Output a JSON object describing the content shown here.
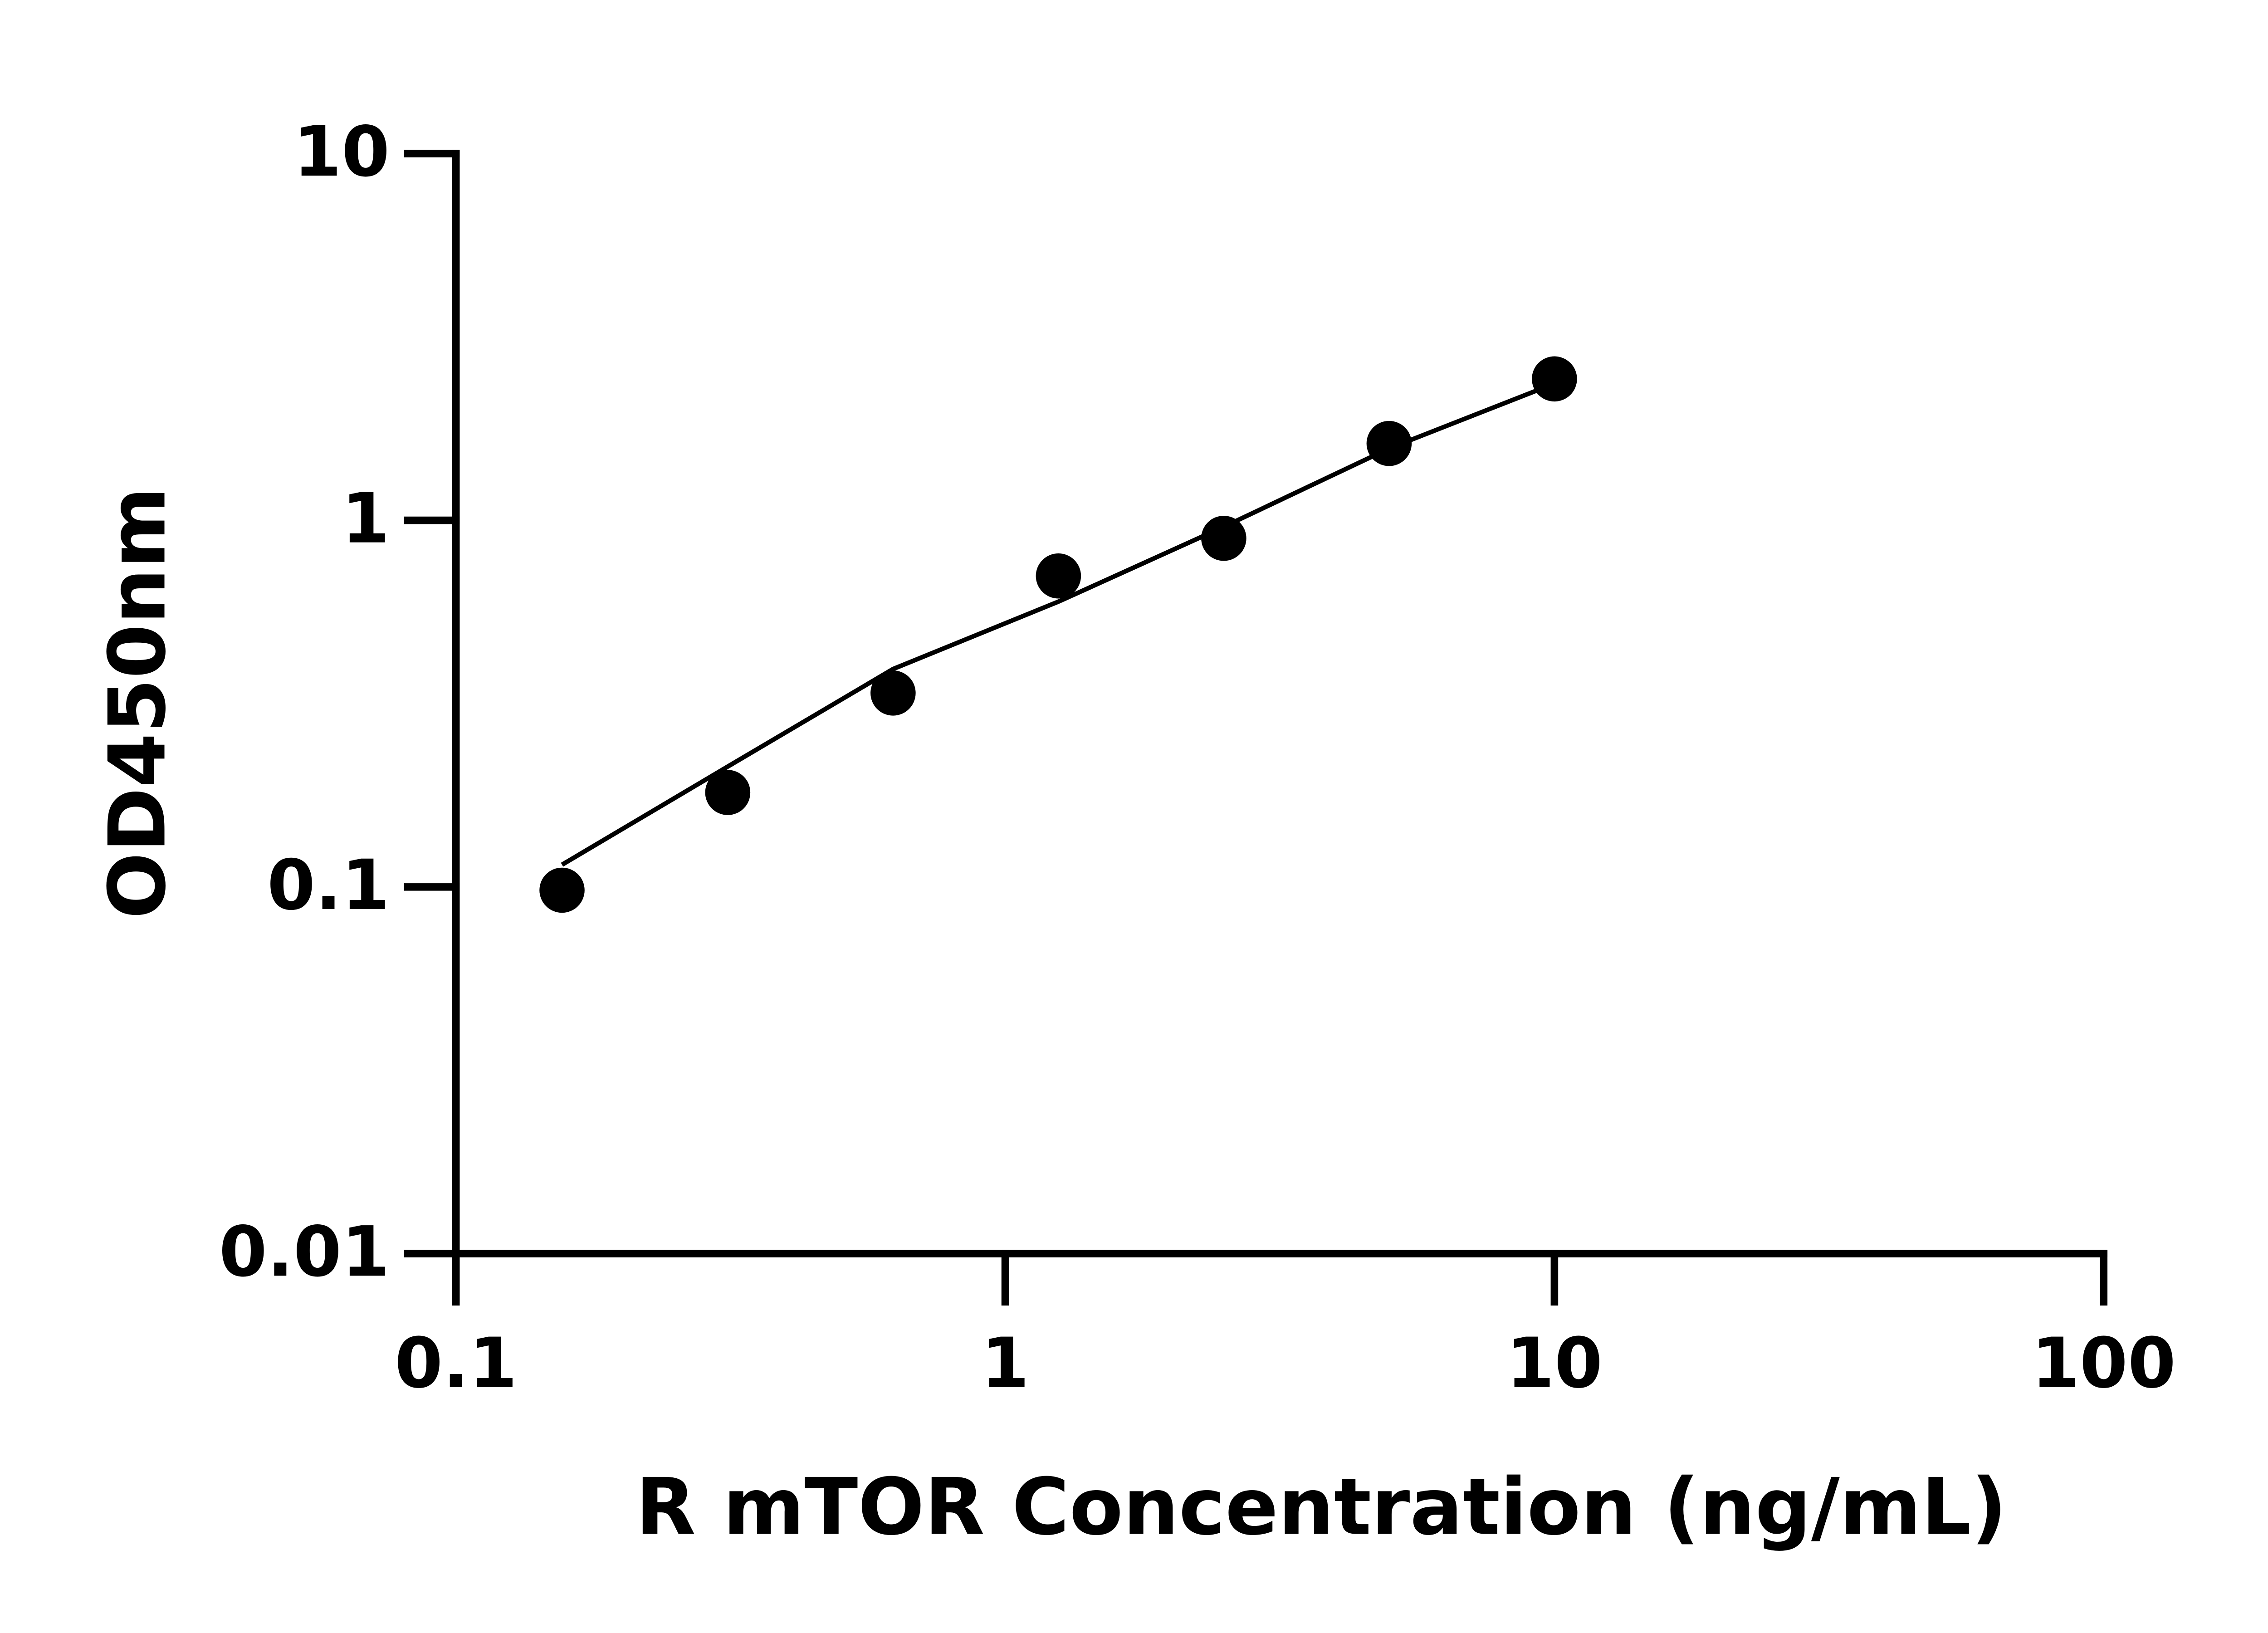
{
  "chart_data": {
    "type": "scatter",
    "xlabel": "R mTOR Concentration (ng/mL)",
    "ylabel": "OD450nm",
    "x": [
      0.156,
      0.3125,
      0.625,
      1.25,
      2.5,
      5,
      10
    ],
    "values": [
      0.098,
      0.181,
      0.338,
      0.705,
      0.893,
      1.62,
      2.43
    ],
    "fit": {
      "x": [
        0.156,
        0.3125,
        0.625,
        1.25,
        2.5,
        5,
        10
      ],
      "values": [
        0.115,
        0.213,
        0.393,
        0.6,
        0.96,
        1.57,
        2.36
      ]
    },
    "color": "#000000",
    "xscale": "log",
    "yscale": "log",
    "xlim": [
      0.1,
      100
    ],
    "ylim": [
      0.01,
      10
    ],
    "xticks": [
      0.1,
      1,
      10,
      100
    ],
    "yticks": [
      0.01,
      0.1,
      1,
      10
    ]
  }
}
